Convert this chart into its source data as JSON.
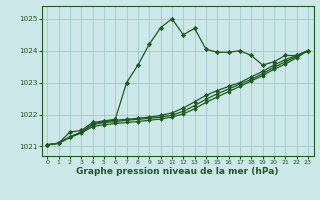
{
  "background_color": "#cce8e8",
  "grid_color": "#99cccc",
  "line_color": "#1a5c1a",
  "marker_color": "#1a5c1a",
  "xlabel": "Graphe pression niveau de la mer (hPa)",
  "xlabel_fontsize": 6.5,
  "ylim": [
    1020.7,
    1025.4
  ],
  "xlim": [
    -0.5,
    23.5
  ],
  "yticks": [
    1021,
    1022,
    1023,
    1024,
    1025
  ],
  "xticks": [
    0,
    1,
    2,
    3,
    4,
    5,
    6,
    7,
    8,
    9,
    10,
    11,
    12,
    13,
    14,
    15,
    16,
    17,
    18,
    19,
    20,
    21,
    22,
    23
  ],
  "line1_x": [
    0,
    1,
    2,
    3,
    4,
    5,
    6,
    7,
    8,
    9,
    10,
    11,
    12,
    13,
    14,
    15,
    16,
    17,
    18,
    19,
    20,
    21,
    22,
    23
  ],
  "line1_y": [
    1021.05,
    1021.1,
    1021.45,
    1021.5,
    1021.75,
    1021.8,
    1021.85,
    1023.0,
    1023.55,
    1024.2,
    1024.72,
    1025.0,
    1024.5,
    1024.7,
    1024.05,
    1023.95,
    1023.95,
    1024.0,
    1023.85,
    1023.55,
    1023.65,
    1023.85,
    1023.85,
    1024.0
  ],
  "line2_x": [
    0,
    1,
    2,
    3,
    4,
    5,
    6,
    7,
    8,
    9,
    10,
    11,
    12,
    13,
    14,
    15,
    16,
    17,
    18,
    19,
    20,
    21,
    22,
    23
  ],
  "line2_y": [
    1021.05,
    1021.1,
    1021.3,
    1021.45,
    1021.7,
    1021.78,
    1021.82,
    1021.85,
    1021.88,
    1021.92,
    1021.97,
    1022.05,
    1022.2,
    1022.4,
    1022.6,
    1022.75,
    1022.88,
    1023.0,
    1023.18,
    1023.35,
    1023.55,
    1023.72,
    1023.85,
    1024.0
  ],
  "line3_x": [
    0,
    1,
    2,
    3,
    4,
    5,
    6,
    7,
    8,
    9,
    10,
    11,
    12,
    13,
    14,
    15,
    16,
    17,
    18,
    19,
    20,
    21,
    22,
    23
  ],
  "line3_y": [
    1021.05,
    1021.1,
    1021.3,
    1021.45,
    1021.68,
    1021.75,
    1021.78,
    1021.82,
    1021.85,
    1021.88,
    1021.92,
    1021.98,
    1022.1,
    1022.28,
    1022.48,
    1022.65,
    1022.8,
    1022.95,
    1023.1,
    1023.28,
    1023.48,
    1023.65,
    1023.82,
    1024.0
  ],
  "line4_x": [
    0,
    1,
    2,
    3,
    4,
    5,
    6,
    7,
    8,
    9,
    10,
    11,
    12,
    13,
    14,
    15,
    16,
    17,
    18,
    19,
    20,
    21,
    22,
    23
  ],
  "line4_y": [
    1021.05,
    1021.1,
    1021.28,
    1021.42,
    1021.62,
    1021.68,
    1021.72,
    1021.75,
    1021.78,
    1021.82,
    1021.86,
    1021.92,
    1022.02,
    1022.18,
    1022.38,
    1022.55,
    1022.72,
    1022.88,
    1023.05,
    1023.22,
    1023.42,
    1023.58,
    1023.78,
    1024.0
  ]
}
